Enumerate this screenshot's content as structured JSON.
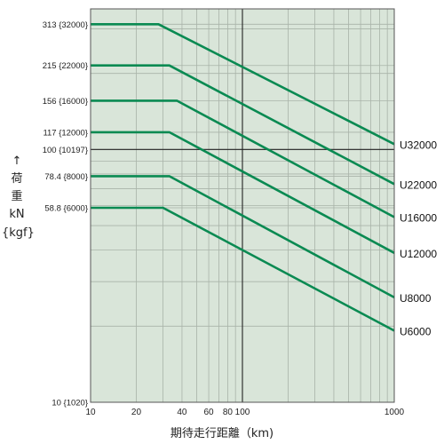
{
  "chart_data": {
    "type": "line",
    "xlabel": "期待走行距離（km)",
    "ylabel": {
      "arrow": "↑",
      "char1": "荷",
      "char2": "重",
      "unit1": "kN",
      "unit2": "{kgf}"
    },
    "x_scale": "log",
    "y_scale": "log",
    "xlim": [
      10,
      1000
    ],
    "ylim": [
      10,
      360
    ],
    "x_ticks": [
      10,
      20,
      40,
      60,
      80,
      100,
      1000
    ],
    "x_tick_labels": [
      "10",
      "20",
      "40",
      "60",
      "80",
      "100",
      "1000"
    ],
    "y_ticks": [
      {
        "value": 313,
        "label": "313 {32000}"
      },
      {
        "value": 215,
        "label": "215 {22000}"
      },
      {
        "value": 156,
        "label": "156 {16000}"
      },
      {
        "value": 117,
        "label": "117 {12000}"
      },
      {
        "value": 100,
        "label": "100 {10197}"
      },
      {
        "value": 78.4,
        "label": "78.4 {8000}"
      },
      {
        "value": 58.8,
        "label": "58.8 {6000}"
      },
      {
        "value": 10,
        "label": "10 {1020}"
      }
    ],
    "grid": true,
    "reference_lines": {
      "x": 100,
      "y": 100
    },
    "series": [
      {
        "name": "U32000",
        "points": [
          [
            10,
            313
          ],
          [
            28,
            313
          ],
          [
            1000,
            105
          ]
        ]
      },
      {
        "name": "U22000",
        "points": [
          [
            10,
            215
          ],
          [
            33,
            215
          ],
          [
            1000,
            73
          ]
        ]
      },
      {
        "name": "U16000",
        "points": [
          [
            10,
            156
          ],
          [
            37,
            156
          ],
          [
            1000,
            54
          ]
        ]
      },
      {
        "name": "U12000",
        "points": [
          [
            10,
            117
          ],
          [
            33,
            117
          ],
          [
            1000,
            39
          ]
        ]
      },
      {
        "name": "U8000",
        "points": [
          [
            10,
            78.4
          ],
          [
            33,
            78.4
          ],
          [
            1000,
            26
          ]
        ]
      },
      {
        "name": "U6000",
        "points": [
          [
            10,
            58.8
          ],
          [
            30,
            58.8
          ],
          [
            1000,
            19.2
          ]
        ]
      }
    ],
    "colors": {
      "plot_background": "#d9e5d9",
      "series_line": "#0a8a52",
      "grid": "#a9b3a9",
      "reference": "#222222"
    }
  }
}
